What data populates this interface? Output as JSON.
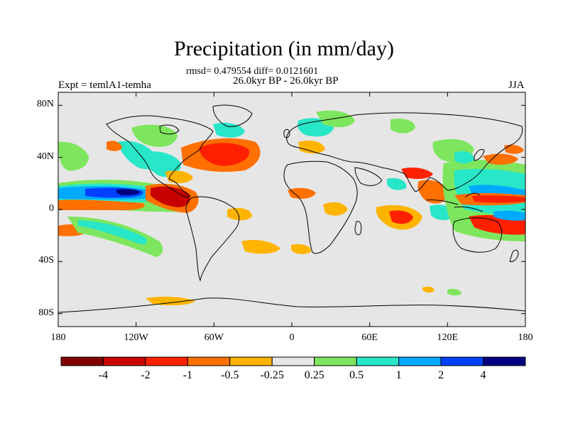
{
  "header": {
    "title": "Precipitation (in mm/day)",
    "stats": "rmsd= 0.479554 diff= 0.0121601",
    "period": "26.0kyr BP - 26.0kyr BP",
    "experiment": "Expt = temlA1-temha",
    "season": "JJA"
  },
  "axes": {
    "y_ticks": [
      {
        "label": "80N",
        "lat": 80
      },
      {
        "label": "40N",
        "lat": 40
      },
      {
        "label": "0",
        "lat": 0
      },
      {
        "label": "40S",
        "lat": -40
      },
      {
        "label": "80S",
        "lat": -80
      }
    ],
    "x_ticks": [
      {
        "label": "180",
        "lon": -180
      },
      {
        "label": "120W",
        "lon": -120
      },
      {
        "label": "60W",
        "lon": -60
      },
      {
        "label": "0",
        "lon": 0
      },
      {
        "label": "60E",
        "lon": 60
      },
      {
        "label": "120E",
        "lon": 120
      },
      {
        "label": "180",
        "lon": 180
      }
    ],
    "lon_range": [
      -180,
      180
    ],
    "lat_range": [
      -90,
      90
    ]
  },
  "colorbar": {
    "colors": [
      "#800000",
      "#c80000",
      "#ff2000",
      "#ff7000",
      "#ffb400",
      "#e6e6e6",
      "#7ee65e",
      "#28e6c8",
      "#00aaff",
      "#0040ff",
      "#000080"
    ],
    "labels": [
      "-4",
      "-2",
      "-1",
      "-0.5",
      "-0.25",
      "0.25",
      "0.5",
      "1",
      "2",
      "4"
    ]
  },
  "map_colors": {
    "background": "#e6e6e6",
    "coast": "#000000",
    "frame": "#000000"
  }
}
